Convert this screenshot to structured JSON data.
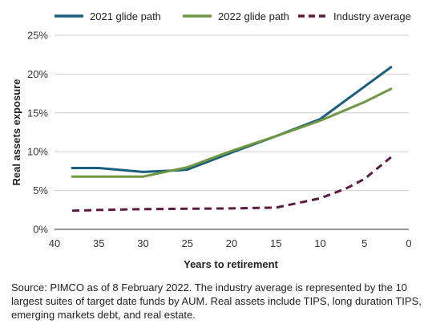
{
  "chart_data": {
    "type": "line",
    "xlabel": "Years to retirement",
    "ylabel": "Real assets exposure",
    "xlim": [
      40,
      0
    ],
    "ylim": [
      0,
      25
    ],
    "x_ticks": [
      "40",
      "35",
      "30",
      "25",
      "20",
      "15",
      "10",
      "5",
      "0"
    ],
    "y_ticks": [
      "0%",
      "5%",
      "10%",
      "15%",
      "20%",
      "25%"
    ],
    "grid": "horizontal",
    "legend_position": "top",
    "series": [
      {
        "name": "2021 glide path",
        "color": "#1b5d7f",
        "style": "solid",
        "x": [
          38,
          35,
          30,
          26,
          25,
          20,
          15,
          10,
          5,
          2
        ],
        "y": [
          7.9,
          7.9,
          7.4,
          7.6,
          7.7,
          9.9,
          12.0,
          14.2,
          18.4,
          20.9
        ]
      },
      {
        "name": "2022 glide path",
        "color": "#6e9844",
        "style": "solid",
        "x": [
          38,
          35,
          30,
          25,
          20,
          15,
          10,
          5,
          2
        ],
        "y": [
          6.8,
          6.8,
          6.8,
          8.0,
          10.1,
          12.0,
          14.0,
          16.4,
          18.1
        ]
      },
      {
        "name": "Industry average",
        "color": "#5b1a3f",
        "style": "dashed",
        "x": [
          38,
          35,
          30,
          25,
          20,
          15,
          10,
          7,
          5,
          2
        ],
        "y": [
          2.4,
          2.5,
          2.6,
          2.65,
          2.7,
          2.8,
          4.0,
          5.3,
          6.5,
          9.3
        ]
      }
    ]
  },
  "source_note": "Source: PIMCO as of 8 February 2022. The industry average is represented by the 10 largest suites of target date funds by AUM. Real assets include TIPS, long duration TIPS, emerging markets debt, and real estate."
}
